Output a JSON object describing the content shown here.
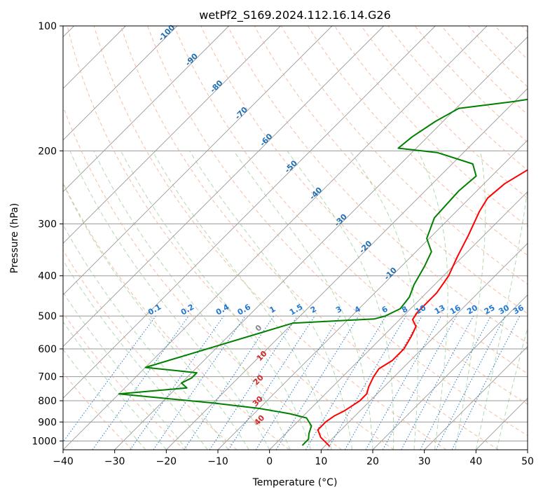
{
  "chart_data": {
    "type": "line",
    "title": "wetPf2_S169.2024.112.16.14.G26",
    "xlabel": "Temperature (°C)",
    "ylabel": "Pressure (hPa)",
    "xlim": [
      -40,
      50
    ],
    "ylim": [
      1050,
      100
    ],
    "y_scale": "log",
    "x_ticks": [
      -40,
      -30,
      -20,
      -10,
      0,
      10,
      20,
      30,
      40,
      50
    ],
    "y_ticks": [
      100,
      200,
      300,
      400,
      500,
      600,
      700,
      800,
      900,
      1000
    ],
    "grid": true,
    "series": [
      {
        "role": "temperature",
        "color": "#ff0000",
        "points": [
          [
            11.0,
            1030
          ],
          [
            7.5,
            980
          ],
          [
            5.5,
            940
          ],
          [
            5.5,
            900
          ],
          [
            6.0,
            870
          ],
          [
            7.0,
            845
          ],
          [
            8.0,
            800
          ],
          [
            8.0,
            770
          ],
          [
            7.0,
            740
          ],
          [
            6.0,
            700
          ],
          [
            5.5,
            670
          ],
          [
            6.5,
            640
          ],
          [
            6.5,
            600
          ],
          [
            5.5,
            560
          ],
          [
            4.5,
            530
          ],
          [
            2.5,
            510
          ],
          [
            2.0,
            490
          ],
          [
            2.0,
            440
          ],
          [
            1.0,
            400
          ],
          [
            -1.0,
            360
          ],
          [
            -3.0,
            320
          ],
          [
            -5.5,
            280
          ],
          [
            -6.5,
            260
          ],
          [
            -6.0,
            240
          ],
          [
            -4.0,
            220
          ],
          [
            0.0,
            200
          ],
          [
            4.0,
            185
          ],
          [
            10.0,
            165
          ],
          [
            14.0,
            152
          ],
          [
            17.0,
            140
          ],
          [
            22.0,
            125
          ],
          [
            27.0,
            112
          ],
          [
            30.0,
            100
          ]
        ]
      },
      {
        "role": "dewpoint",
        "color": "#008000",
        "points": [
          [
            5.5,
            1025
          ],
          [
            5.5,
            990
          ],
          [
            4.5,
            960
          ],
          [
            3.5,
            920
          ],
          [
            1.0,
            880
          ],
          [
            -3.0,
            860
          ],
          [
            -10.0,
            835
          ],
          [
            -20.0,
            810
          ],
          [
            -30.0,
            790
          ],
          [
            -40.0,
            770
          ],
          [
            -28.0,
            745
          ],
          [
            -30.0,
            725
          ],
          [
            -29.0,
            705
          ],
          [
            -29.0,
            685
          ],
          [
            -40.0,
            665
          ],
          [
            -20.0,
            520
          ],
          [
            -5.0,
            508
          ],
          [
            -3.5,
            500
          ],
          [
            -2.0,
            480
          ],
          [
            -2.5,
            450
          ],
          [
            -4.0,
            420
          ],
          [
            -5.5,
            380
          ],
          [
            -7.0,
            350
          ],
          [
            -10.5,
            325
          ],
          [
            -13.0,
            290
          ],
          [
            -13.5,
            250
          ],
          [
            -13.0,
            230
          ],
          [
            -16.0,
            215
          ],
          [
            -25.0,
            202
          ],
          [
            -33.5,
            197
          ],
          [
            -33.0,
            185
          ],
          [
            -31.5,
            170
          ],
          [
            -29.5,
            158
          ],
          [
            -20.0,
            152
          ],
          [
            -15.0,
            148
          ],
          [
            -12.0,
            140
          ],
          [
            -9.0,
            128
          ],
          [
            -6.0,
            115
          ],
          [
            -3.0,
            100
          ]
        ]
      }
    ],
    "dry_adiabat_labels": [
      -100,
      -90,
      -80,
      -70,
      -60,
      -50,
      -40,
      -30,
      -20,
      -10
    ],
    "mixing_ratio_labels": [
      "0.1",
      "0.2",
      "0.4",
      "0.6",
      "1",
      "1.5",
      "2",
      "3",
      "4",
      "6",
      "8",
      "10",
      "13",
      "16",
      "20",
      "25",
      "30",
      "36"
    ],
    "moist_adiabat_labels": [
      "0",
      "10",
      "20",
      "30",
      "40"
    ],
    "colors": {
      "isotherm": "#999999",
      "isobar": "#999999",
      "dry_adiabat": "#f4a582",
      "moist_adiabat": "#7fbf7b",
      "mixing_ratio": "#1f78d1",
      "dry_label": "#1f6fb4",
      "moist_label": "#d62728",
      "zero_label": "#888888"
    }
  }
}
